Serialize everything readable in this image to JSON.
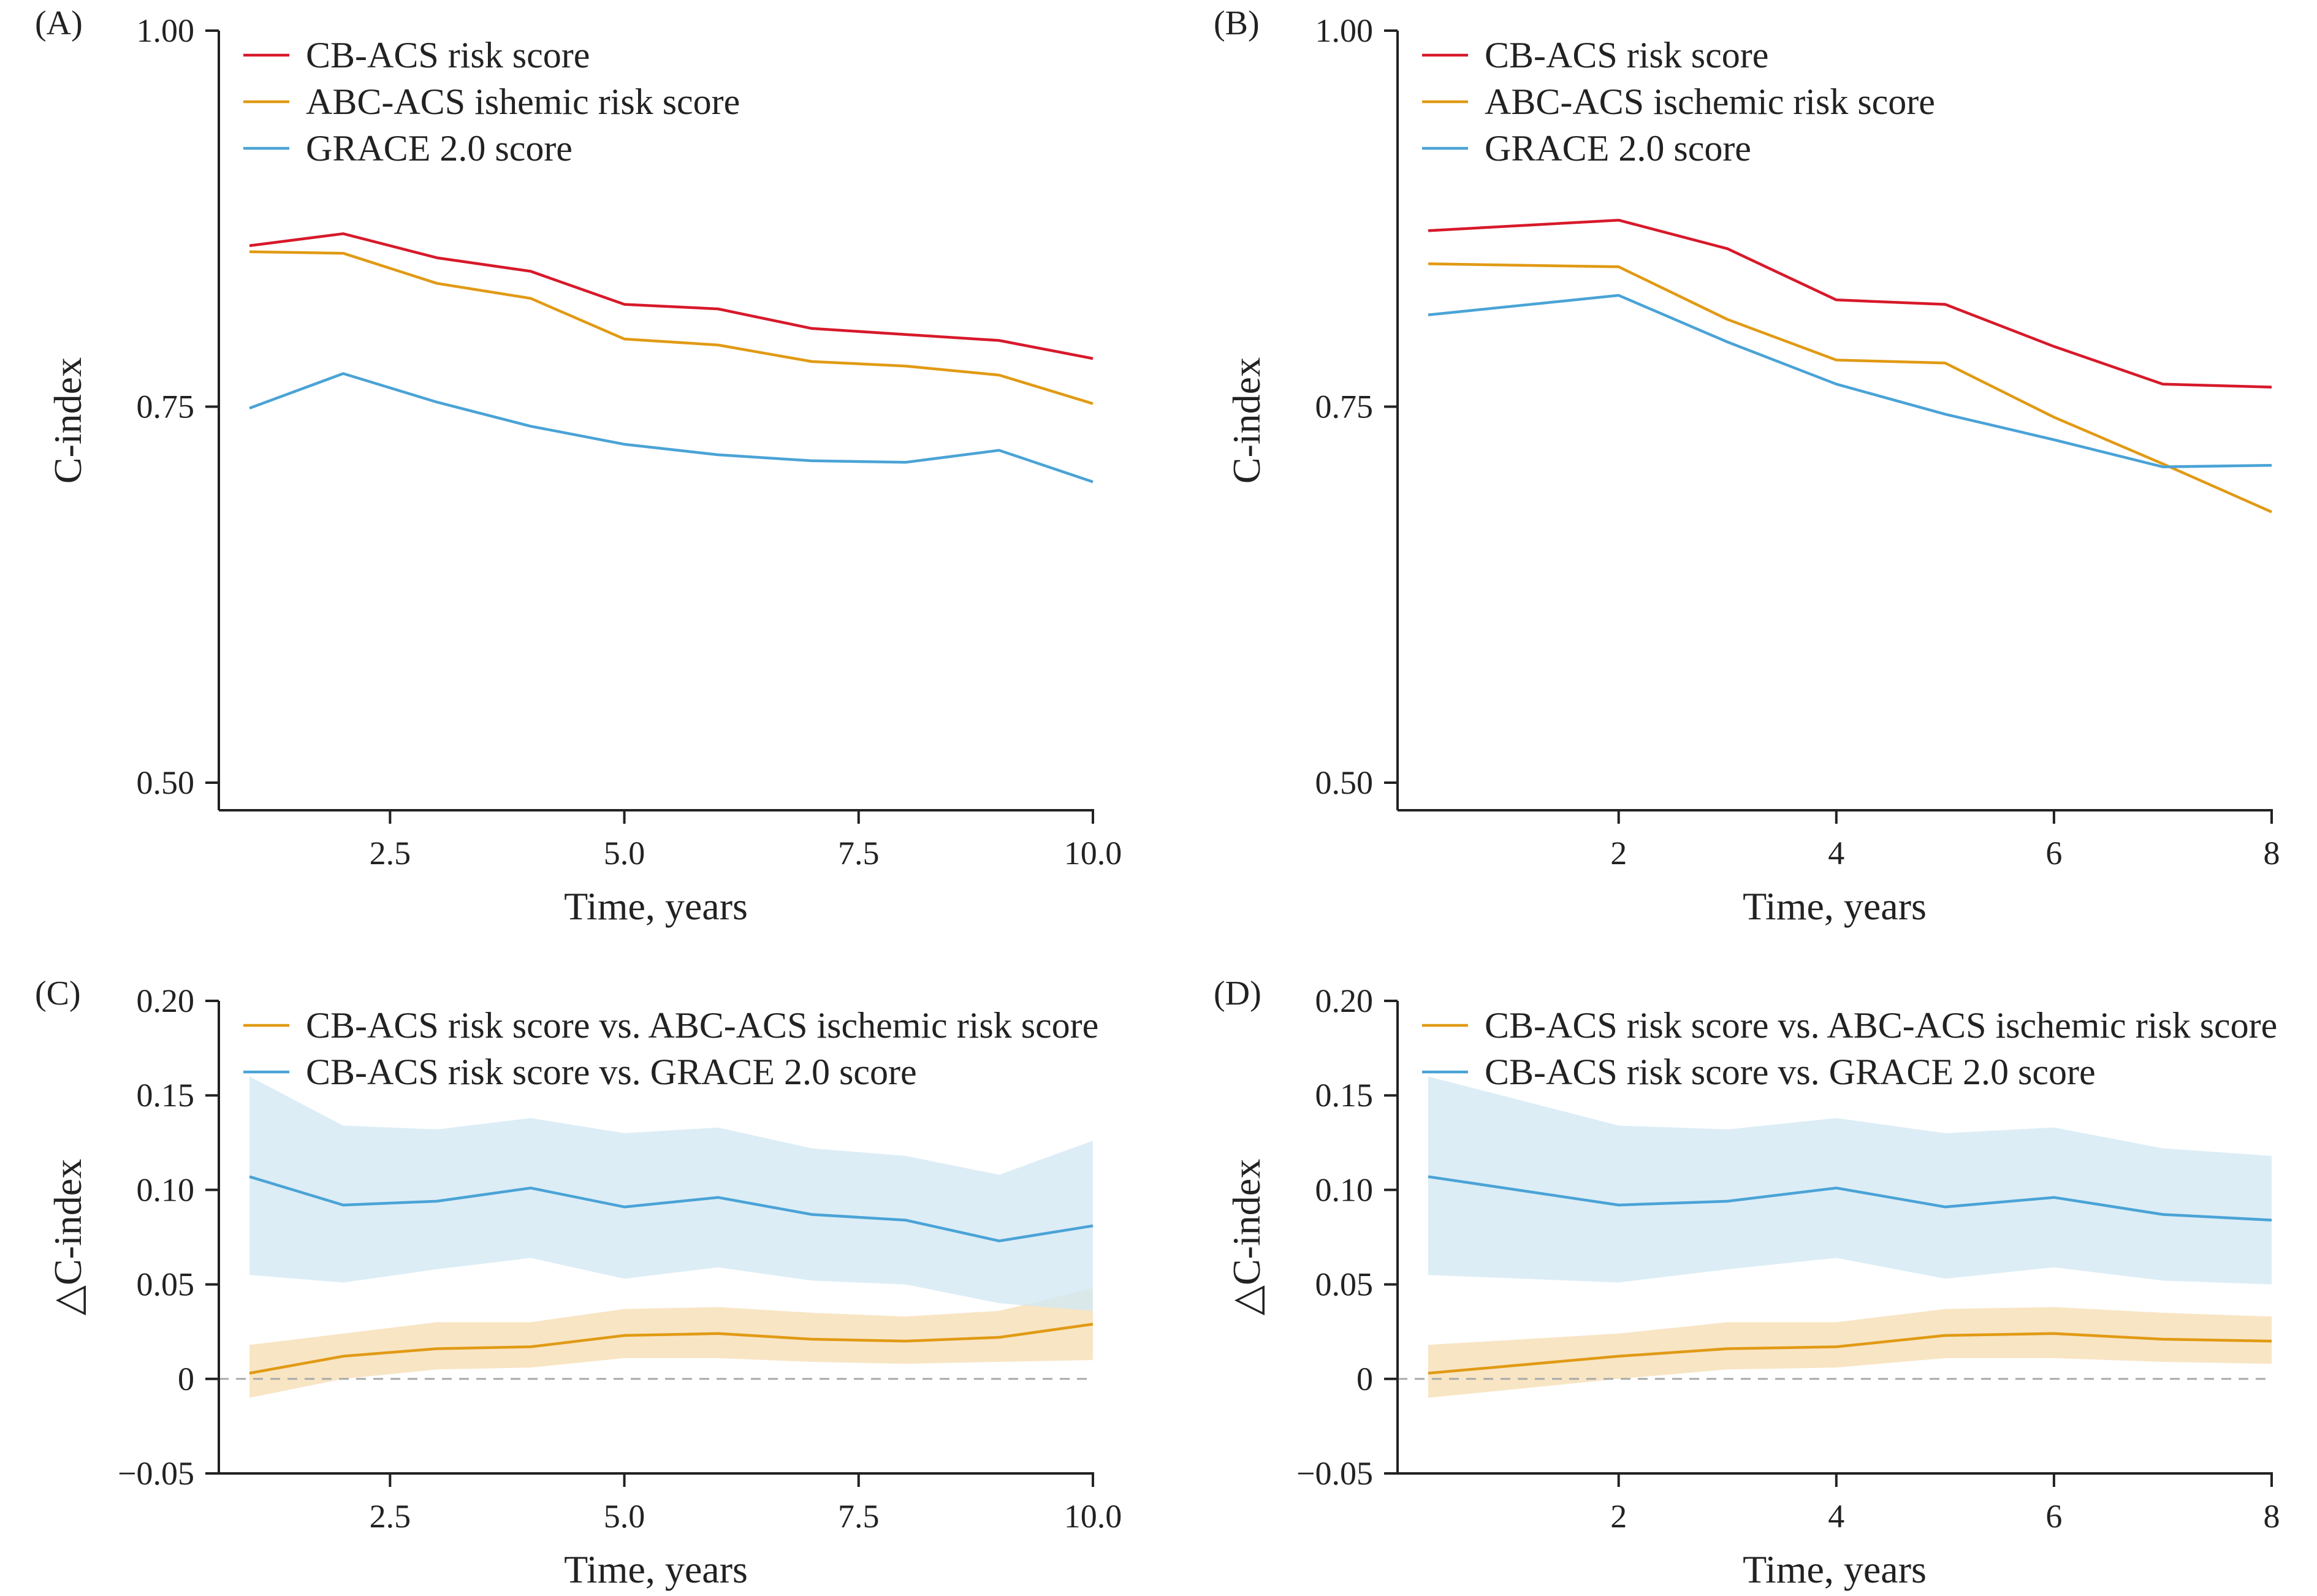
{
  "colors": {
    "red": "#d7192a",
    "orange": "#e19a14",
    "blue": "#4aa3d6",
    "blue_band": "#d3e8f4",
    "orange_band": "#f6dfb5",
    "zero_line": "#aaaaaa",
    "axis": "#222222"
  },
  "chart_data": [
    {
      "type": "line",
      "panel_label": "(A)",
      "xlabel": "Time, years",
      "ylabel": "C-index",
      "xlim": [
        1,
        10
      ],
      "ylim": [
        0.48,
        1.0
      ],
      "x_ticks": [
        2.5,
        5.0,
        7.5,
        10.0
      ],
      "x_tick_labels": [
        "2.5",
        "5.0",
        "7.5",
        "10.0"
      ],
      "y_ticks": [
        0.5,
        0.75,
        1.0
      ],
      "y_tick_labels": [
        "0.50",
        "0.75",
        "1.00"
      ],
      "legend_position": "top-left",
      "x": [
        1,
        2,
        3,
        4,
        5,
        6,
        7,
        8,
        9,
        10
      ],
      "series": [
        {
          "name": "CB-ACS risk score",
          "color_key": "red",
          "values": [
            0.857,
            0.865,
            0.849,
            0.84,
            0.818,
            0.815,
            0.802,
            0.798,
            0.794,
            0.782
          ]
        },
        {
          "name": "ABC-ACS ishemic risk score",
          "color_key": "orange",
          "values": [
            0.853,
            0.852,
            0.832,
            0.822,
            0.795,
            0.791,
            0.78,
            0.777,
            0.771,
            0.752
          ]
        },
        {
          "name": "GRACE 2.0 score",
          "color_key": "blue",
          "values": [
            0.749,
            0.772,
            0.753,
            0.737,
            0.725,
            0.718,
            0.714,
            0.713,
            0.721,
            0.7
          ]
        }
      ]
    },
    {
      "type": "line",
      "panel_label": "(B)",
      "xlabel": "Time, years",
      "ylabel": "C-index",
      "xlim": [
        0.2,
        8
      ],
      "ylim": [
        0.48,
        1.0
      ],
      "x_ticks": [
        2,
        4,
        6,
        8
      ],
      "x_tick_labels": [
        "2",
        "4",
        "6",
        "8"
      ],
      "y_ticks": [
        0.5,
        0.75,
        1.0
      ],
      "y_tick_labels": [
        "0.50",
        "0.75",
        "1.00"
      ],
      "legend_position": "top-left",
      "x": [
        0.25,
        2,
        3,
        4,
        5,
        6,
        7,
        8
      ],
      "series": [
        {
          "name": "CB-ACS risk score",
          "color_key": "red",
          "values": [
            0.867,
            0.874,
            0.855,
            0.821,
            0.818,
            0.79,
            0.765,
            0.763
          ]
        },
        {
          "name": "ABC-ACS ischemic risk score",
          "color_key": "orange",
          "values": [
            0.845,
            0.843,
            0.808,
            0.781,
            0.779,
            0.743,
            0.712,
            0.68
          ]
        },
        {
          "name": "GRACE 2.0 score",
          "color_key": "blue",
          "values": [
            0.811,
            0.824,
            0.793,
            0.765,
            0.745,
            0.728,
            0.71,
            0.711
          ]
        }
      ]
    },
    {
      "type": "line",
      "panel_label": "(C)",
      "xlabel": "Time, years",
      "ylabel": "△C-index",
      "xlim": [
        1,
        10
      ],
      "ylim": [
        -0.05,
        0.2
      ],
      "x_ticks": [
        2.5,
        5.0,
        7.5,
        10.0
      ],
      "x_tick_labels": [
        "2.5",
        "5.0",
        "7.5",
        "10.0"
      ],
      "y_ticks": [
        -0.05,
        0,
        0.05,
        0.1,
        0.15,
        0.2
      ],
      "y_tick_labels": [
        "−0.05",
        "0",
        "0.05",
        "0.10",
        "0.15",
        "0.20"
      ],
      "legend_position": "top-left",
      "reference_line": 0,
      "x": [
        1,
        2,
        3,
        4,
        5,
        6,
        7,
        8,
        9,
        10
      ],
      "series": [
        {
          "name": "CB-ACS risk score vs. ABC-ACS ischemic risk score",
          "color_key": "orange",
          "band_key": "orange_band",
          "values": [
            0.003,
            0.012,
            0.016,
            0.017,
            0.023,
            0.024,
            0.021,
            0.02,
            0.022,
            0.029
          ],
          "lower": [
            -0.01,
            0.0,
            0.005,
            0.006,
            0.011,
            0.011,
            0.009,
            0.008,
            0.009,
            0.01
          ],
          "upper": [
            0.018,
            0.024,
            0.03,
            0.03,
            0.037,
            0.038,
            0.035,
            0.033,
            0.036,
            0.048
          ]
        },
        {
          "name": "CB-ACS risk score vs. GRACE 2.0 score",
          "color_key": "blue",
          "band_key": "blue_band",
          "values": [
            0.107,
            0.092,
            0.094,
            0.101,
            0.091,
            0.096,
            0.087,
            0.084,
            0.073,
            0.081
          ],
          "lower": [
            0.055,
            0.051,
            0.058,
            0.064,
            0.053,
            0.059,
            0.052,
            0.05,
            0.04,
            0.036
          ],
          "upper": [
            0.16,
            0.134,
            0.132,
            0.138,
            0.13,
            0.133,
            0.122,
            0.118,
            0.108,
            0.126
          ]
        }
      ]
    },
    {
      "type": "line",
      "panel_label": "(D)",
      "xlabel": "Time, years",
      "ylabel": "△C-index",
      "xlim": [
        0.2,
        8
      ],
      "ylim": [
        -0.05,
        0.2
      ],
      "x_ticks": [
        2,
        4,
        6,
        8
      ],
      "x_tick_labels": [
        "2",
        "4",
        "6",
        "8"
      ],
      "y_ticks": [
        -0.05,
        0,
        0.05,
        0.1,
        0.15,
        0.2
      ],
      "y_tick_labels": [
        "−0.05",
        "0",
        "0.05",
        "0.10",
        "0.15",
        "0.20"
      ],
      "legend_position": "top-left",
      "reference_line": 0,
      "x": [
        0.25,
        2,
        3,
        4,
        5,
        6,
        7,
        8
      ],
      "series": [
        {
          "name": "CB-ACS risk score vs. ABC-ACS ischemic risk score",
          "color_key": "orange",
          "band_key": "orange_band",
          "values": [
            0.003,
            0.012,
            0.016,
            0.017,
            0.023,
            0.024,
            0.021,
            0.02
          ],
          "lower": [
            -0.01,
            0.0,
            0.005,
            0.006,
            0.011,
            0.011,
            0.009,
            0.008
          ],
          "upper": [
            0.018,
            0.024,
            0.03,
            0.03,
            0.037,
            0.038,
            0.035,
            0.033
          ]
        },
        {
          "name": "CB-ACS risk score vs. GRACE 2.0 score",
          "color_key": "blue",
          "band_key": "blue_band",
          "values": [
            0.107,
            0.092,
            0.094,
            0.101,
            0.091,
            0.096,
            0.087,
            0.084
          ],
          "lower": [
            0.055,
            0.051,
            0.058,
            0.064,
            0.053,
            0.059,
            0.052,
            0.05
          ],
          "upper": [
            0.16,
            0.134,
            0.132,
            0.138,
            0.13,
            0.133,
            0.122,
            0.118
          ]
        }
      ]
    }
  ]
}
